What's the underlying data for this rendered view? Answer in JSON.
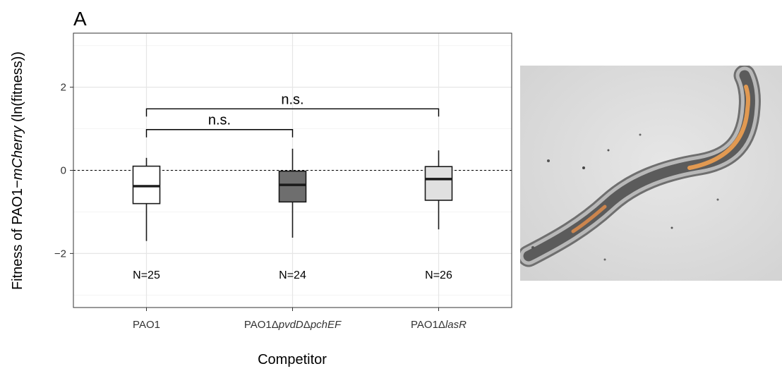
{
  "panel_label": "A",
  "chart_data": {
    "type": "box",
    "ylabel": "Fitness of PAO1−mCherry (ln(fitness))",
    "ylabel_parts": [
      {
        "text": "Fitness of PAO1−",
        "italic": false
      },
      {
        "text": "mCherry",
        "italic": true
      },
      {
        "text": " (ln(fitness))",
        "italic": false
      }
    ],
    "xlabel": "Competitor",
    "ylim": [
      -3.3,
      3.3
    ],
    "yticks": [
      -2,
      0,
      2
    ],
    "ytick_labels": [
      "−2",
      "0",
      "2"
    ],
    "grid": true,
    "reference_line": {
      "y": 0,
      "style": "dashed"
    },
    "categories": [
      "PAO1",
      "PAO1ΔpvdDΔpchEF",
      "PAO1ΔlasR"
    ],
    "category_label_parts": [
      [
        {
          "text": "PAO1",
          "italic": false
        }
      ],
      [
        {
          "text": "PAO1Δ",
          "italic": false
        },
        {
          "text": "pvdD",
          "italic": true
        },
        {
          "text": "Δ",
          "italic": false
        },
        {
          "text": "pchEF",
          "italic": true
        }
      ],
      [
        {
          "text": "PAO1Δ",
          "italic": false
        },
        {
          "text": "lasR",
          "italic": true
        }
      ]
    ],
    "boxes": [
      {
        "category": "PAO1",
        "whisker_low": -1.7,
        "q1": -0.8,
        "median": -0.38,
        "q3": 0.1,
        "whisker_high": 0.3,
        "n_label": "N=25",
        "fill": "#ffffff"
      },
      {
        "category": "PAO1ΔpvdDΔpchEF",
        "whisker_low": -1.62,
        "q1": -0.76,
        "median": -0.35,
        "q3": -0.02,
        "whisker_high": 0.52,
        "n_label": "N=24",
        "fill": "#6e6e6e"
      },
      {
        "category": "PAO1ΔlasR",
        "whisker_low": -1.42,
        "q1": -0.72,
        "median": -0.21,
        "q3": 0.09,
        "whisker_high": 0.48,
        "n_label": "N=26",
        "fill": "#e0e0e0"
      }
    ],
    "n_label_y": -2.5,
    "significance": [
      {
        "from": 0,
        "to": 1,
        "label": "n.s.",
        "y": 0.98
      },
      {
        "from": 0,
        "to": 2,
        "label": "n.s.",
        "y": 1.48
      }
    ]
  },
  "colors": {
    "box_stroke": "#1a1a1a",
    "grid_major": "#e6e6e6",
    "grid_minor": "#f2f2f2",
    "panel_border": "#333333"
  }
}
